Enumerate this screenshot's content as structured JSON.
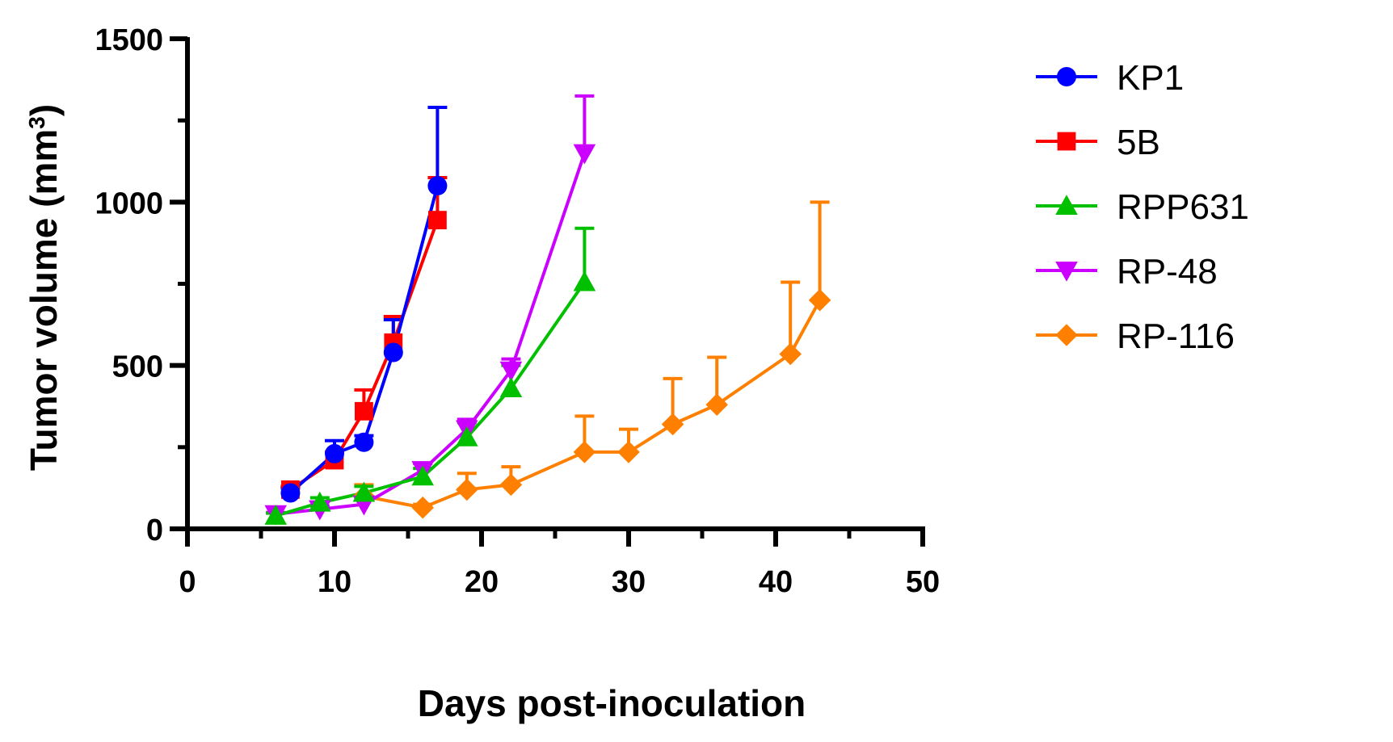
{
  "chart_data": {
    "type": "line",
    "title": "",
    "xlabel": "Days post-inoculation",
    "ylabel_main": "Tumor volume (mm",
    "ylabel_sup": "3",
    "ylabel_close": ")",
    "xlim": [
      0,
      50
    ],
    "ylim": [
      0,
      1500
    ],
    "x_ticks": [
      0,
      10,
      20,
      30,
      40,
      50
    ],
    "x_tick_labels": [
      "0",
      "10",
      "20",
      "30",
      "40",
      "50"
    ],
    "y_ticks": [
      0,
      500,
      1000,
      1500
    ],
    "y_tick_labels": [
      "0",
      "500",
      "1000",
      "1500"
    ],
    "grid": false,
    "legend_position": "right",
    "series": [
      {
        "name": "KP1",
        "color": "#0000ff",
        "marker": "circle",
        "x": [
          7,
          10,
          12,
          14,
          17
        ],
        "y": [
          110,
          230,
          265,
          540,
          1050
        ],
        "err": [
          15,
          40,
          20,
          100,
          240
        ]
      },
      {
        "name": "5B",
        "color": "#ff0000",
        "marker": "square",
        "x": [
          7,
          10,
          12,
          14,
          17
        ],
        "y": [
          120,
          210,
          360,
          570,
          945
        ],
        "err": [
          10,
          25,
          65,
          80,
          130
        ]
      },
      {
        "name": "RPP631",
        "color": "#00c000",
        "marker": "triangle-up",
        "x": [
          6,
          9,
          12,
          16,
          19,
          22,
          27
        ],
        "y": [
          40,
          80,
          110,
          160,
          280,
          430,
          755
        ],
        "err": [
          8,
          15,
          20,
          25,
          45,
          70,
          165
        ]
      },
      {
        "name": "RP-48",
        "color": "#cc00ff",
        "marker": "triangle-down",
        "x": [
          6,
          9,
          12,
          16,
          19,
          22,
          27
        ],
        "y": [
          45,
          60,
          75,
          180,
          305,
          485,
          1150
        ],
        "err": [
          5,
          10,
          15,
          20,
          30,
          35,
          175
        ]
      },
      {
        "name": "RP-116",
        "color": "#ff8000",
        "marker": "diamond",
        "x": [
          12,
          16,
          19,
          22,
          27,
          30,
          33,
          36,
          41,
          43
        ],
        "y": [
          100,
          65,
          120,
          135,
          235,
          235,
          320,
          380,
          535,
          700
        ],
        "err": [
          35,
          10,
          50,
          55,
          110,
          70,
          140,
          145,
          220,
          300
        ]
      }
    ]
  }
}
